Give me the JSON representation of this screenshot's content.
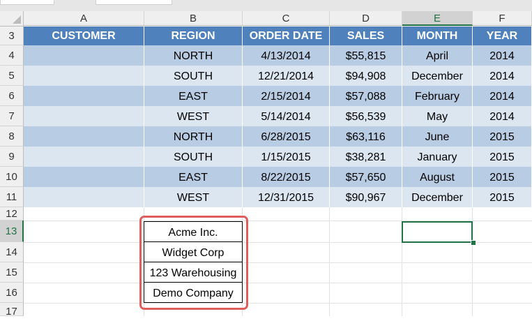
{
  "columns": [
    "A",
    "B",
    "C",
    "D",
    "E",
    "F"
  ],
  "selected_column": "E",
  "rows": [
    "3",
    "4",
    "5",
    "6",
    "7",
    "8",
    "9",
    "10",
    "11",
    "12",
    "13",
    "14",
    "15",
    "16",
    "17"
  ],
  "selected_row": "13",
  "table": {
    "headers": [
      "CUSTOMER",
      "REGION",
      "ORDER DATE",
      "SALES",
      "MONTH",
      "YEAR"
    ],
    "records": [
      [
        "",
        "NORTH",
        "4/13/2014",
        "$55,815",
        "April",
        "2014"
      ],
      [
        "",
        "SOUTH",
        "12/21/2014",
        "$94,908",
        "December",
        "2014"
      ],
      [
        "",
        "EAST",
        "2/15/2014",
        "$57,088",
        "February",
        "2014"
      ],
      [
        "",
        "WEST",
        "5/14/2014",
        "$56,539",
        "May",
        "2014"
      ],
      [
        "",
        "NORTH",
        "6/28/2015",
        "$63,116",
        "June",
        "2015"
      ],
      [
        "",
        "SOUTH",
        "1/15/2015",
        "$38,281",
        "January",
        "2015"
      ],
      [
        "",
        "EAST",
        "8/22/2015",
        "$57,650",
        "August",
        "2015"
      ],
      [
        "",
        "WEST",
        "12/31/2015",
        "$90,967",
        "December",
        "2015"
      ]
    ]
  },
  "customer_list": [
    "Acme Inc.",
    "Widget Corp",
    "123 Warehousing",
    "Demo Company"
  ],
  "colors": {
    "header_fill": "#4f81bd",
    "band_dark": "#b8cce4",
    "band_light": "#dce6f1",
    "highlight_outline": "#e05d5d",
    "selection_green": "#217346"
  }
}
